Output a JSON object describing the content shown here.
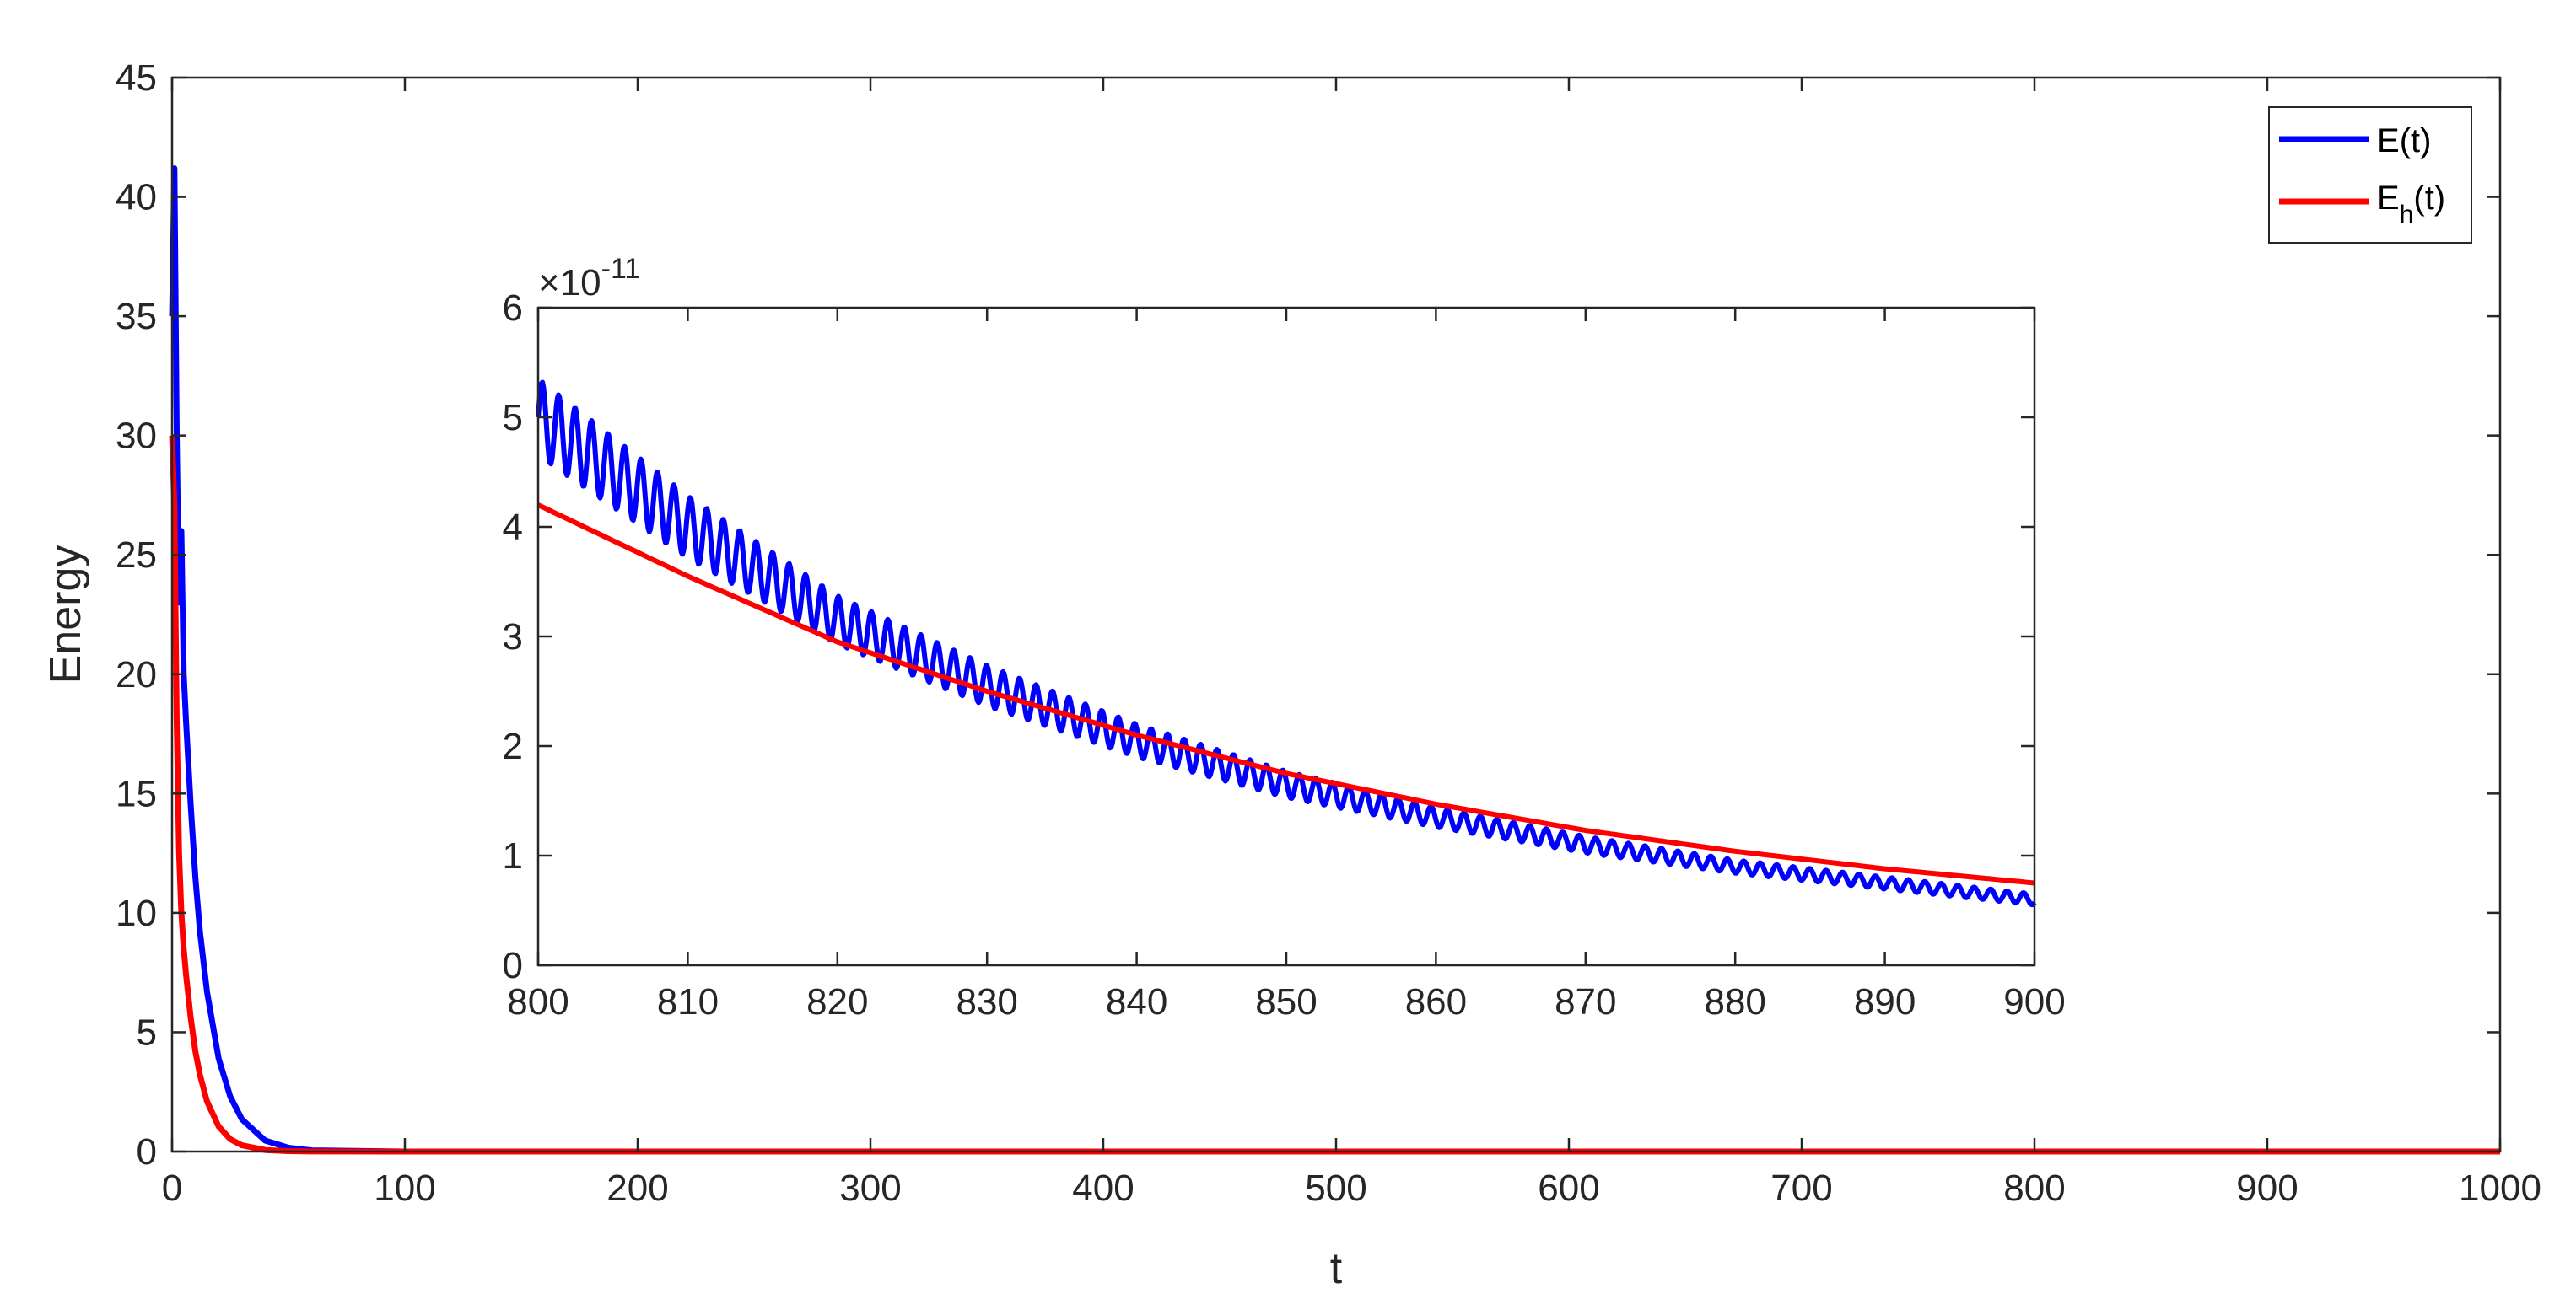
{
  "chart_data": [
    {
      "id": "main",
      "type": "line",
      "xlabel": "t",
      "ylabel": "Energy",
      "xlim": [
        0,
        1000
      ],
      "ylim": [
        0,
        45
      ],
      "xticks": [
        "0",
        "100",
        "200",
        "300",
        "400",
        "500",
        "600",
        "700",
        "800",
        "900",
        "1000"
      ],
      "yticks": [
        "0",
        "5",
        "10",
        "15",
        "20",
        "25",
        "30",
        "35",
        "40",
        "45"
      ],
      "grid": false,
      "legend_position": "top-right",
      "series": [
        {
          "name": "E(t)",
          "color": "#0000ff",
          "x": [
            0,
            1,
            2,
            3,
            4,
            5,
            6,
            8,
            10,
            12,
            15,
            20,
            25,
            30,
            40,
            50,
            60,
            100,
            200,
            400,
            600,
            800,
            1000
          ],
          "y": [
            35,
            41.2,
            30,
            23,
            26,
            20,
            18,
            14.5,
            11.5,
            9.2,
            6.7,
            3.9,
            2.3,
            1.35,
            0.46,
            0.16,
            0.05,
            0.001,
            0,
            0,
            0,
            0,
            0
          ]
        },
        {
          "name": "E_h(t)",
          "color": "#ff0000",
          "x": [
            0,
            1,
            2,
            3,
            4,
            5,
            6,
            8,
            10,
            12,
            15,
            20,
            25,
            30,
            40,
            50,
            60,
            100,
            200,
            400,
            600,
            800,
            1000
          ],
          "y": [
            30,
            27,
            18,
            12.5,
            10,
            8.5,
            7.4,
            5.6,
            4.2,
            3.2,
            2.1,
            1.05,
            0.52,
            0.26,
            0.065,
            0.016,
            0.004,
            0,
            0,
            0,
            0,
            0,
            0
          ]
        }
      ]
    },
    {
      "id": "inset",
      "type": "line",
      "xlim": [
        800,
        900
      ],
      "ylim": [
        0,
        6
      ],
      "y_exponent_label": "×10",
      "y_exponent": "-11",
      "xticks": [
        "800",
        "810",
        "820",
        "830",
        "840",
        "850",
        "860",
        "870",
        "880",
        "890",
        "900"
      ],
      "yticks": [
        "0",
        "1",
        "2",
        "3",
        "4",
        "5",
        "6"
      ],
      "grid": false,
      "series": [
        {
          "name": "E(t)",
          "color": "#0000ff",
          "trend": {
            "x": [
              800,
              810,
              820,
              830,
              840,
              850,
              860,
              870,
              880,
              890,
              900
            ],
            "y": [
              5.0,
              4.0,
              3.15,
              2.55,
              2.05,
              1.65,
              1.35,
              1.1,
              0.9,
              0.75,
              0.6
            ]
          },
          "oscillation_amplitude": {
            "x": [
              800,
              820,
              840,
              860,
              880,
              900
            ],
            "y": [
              0.35,
              0.22,
              0.15,
              0.09,
              0.06,
              0.05
            ]
          },
          "oscillation_period": 1.1
        },
        {
          "name": "E_h(t)",
          "color": "#ff0000",
          "x": [
            800,
            810,
            820,
            830,
            840,
            850,
            860,
            870,
            880,
            890,
            900
          ],
          "y": [
            4.2,
            3.55,
            2.95,
            2.5,
            2.1,
            1.75,
            1.47,
            1.23,
            1.04,
            0.88,
            0.75
          ]
        }
      ]
    }
  ],
  "legend": {
    "entries": [
      {
        "label": "E(t)",
        "base": "E",
        "subscript": "",
        "suffix": "(t)",
        "color": "#0000ff"
      },
      {
        "label": "E_h(t)",
        "base": "E",
        "subscript": "h",
        "suffix": "(t)",
        "color": "#ff0000"
      }
    ]
  }
}
